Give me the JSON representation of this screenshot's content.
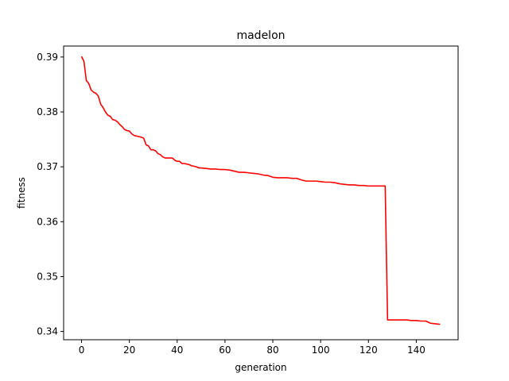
{
  "chart_data": {
    "type": "line",
    "title": "madelon",
    "xlabel": "generation",
    "ylabel": "fitness",
    "xlim": [
      -7.5,
      157.5
    ],
    "ylim": [
      0.3385,
      0.392
    ],
    "xticks": [
      0,
      20,
      40,
      60,
      80,
      100,
      120,
      140
    ],
    "yticks": [
      0.34,
      0.35,
      0.36,
      0.37,
      0.38,
      0.39
    ],
    "xtick_labels": [
      "0",
      "20",
      "40",
      "60",
      "80",
      "100",
      "120",
      "140"
    ],
    "ytick_labels": [
      "0.34",
      "0.35",
      "0.36",
      "0.37",
      "0.38",
      "0.39"
    ],
    "grid": false,
    "series": [
      {
        "color": "#ff0000",
        "x": [
          0,
          1,
          2,
          3,
          4,
          5,
          6,
          7,
          8,
          9,
          10,
          11,
          12,
          13,
          14,
          15,
          16,
          17,
          18,
          19,
          20,
          21,
          22,
          23,
          24,
          25,
          26,
          27,
          28,
          29,
          30,
          31,
          32,
          33,
          34,
          35,
          36,
          37,
          38,
          39,
          40,
          41,
          42,
          43,
          44,
          45,
          46,
          47,
          48,
          49,
          50,
          52,
          54,
          56,
          58,
          60,
          62,
          64,
          66,
          68,
          70,
          72,
          74,
          76,
          78,
          80,
          82,
          84,
          86,
          88,
          90,
          92,
          94,
          96,
          98,
          100,
          102,
          104,
          106,
          108,
          110,
          112,
          114,
          116,
          118,
          120,
          122,
          124,
          126,
          127,
          128,
          130,
          132,
          134,
          136,
          138,
          140,
          142,
          144,
          146,
          148,
          150
        ],
        "y": [
          0.3901,
          0.3892,
          0.3857,
          0.3852,
          0.384,
          0.3836,
          0.3834,
          0.3829,
          0.3814,
          0.3808,
          0.38,
          0.3794,
          0.3792,
          0.3786,
          0.3785,
          0.3782,
          0.3777,
          0.3773,
          0.3768,
          0.3766,
          0.3765,
          0.376,
          0.3757,
          0.3756,
          0.3755,
          0.3754,
          0.3752,
          0.374,
          0.3738,
          0.3731,
          0.3731,
          0.3729,
          0.3724,
          0.3722,
          0.3718,
          0.3716,
          0.3716,
          0.3716,
          0.3716,
          0.3712,
          0.371,
          0.371,
          0.3706,
          0.3706,
          0.3705,
          0.3704,
          0.3702,
          0.3701,
          0.37,
          0.3698,
          0.3698,
          0.3697,
          0.3696,
          0.3696,
          0.3695,
          0.3695,
          0.3694,
          0.3692,
          0.369,
          0.369,
          0.3689,
          0.3688,
          0.3687,
          0.3685,
          0.3684,
          0.3681,
          0.368,
          0.368,
          0.368,
          0.3679,
          0.3679,
          0.3676,
          0.3674,
          0.3674,
          0.3674,
          0.3673,
          0.3672,
          0.3672,
          0.3671,
          0.3669,
          0.3668,
          0.3667,
          0.3667,
          0.3666,
          0.3666,
          0.3665,
          0.3665,
          0.3665,
          0.3665,
          0.3665,
          0.3421,
          0.3421,
          0.3421,
          0.3421,
          0.3421,
          0.342,
          0.342,
          0.3419,
          0.3419,
          0.3415,
          0.3414,
          0.3413
        ]
      }
    ]
  }
}
